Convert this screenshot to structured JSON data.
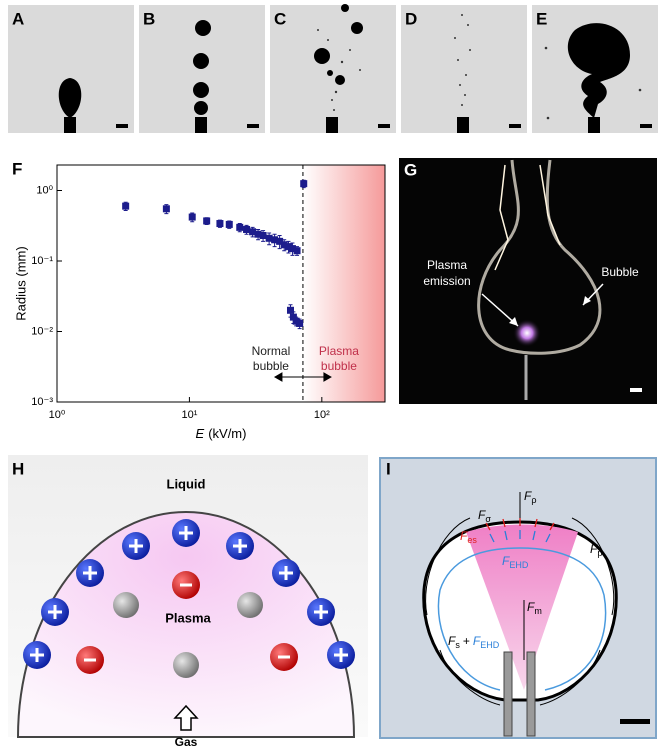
{
  "panel_labels": [
    "A",
    "B",
    "C",
    "D",
    "E",
    "F",
    "G",
    "H",
    "I"
  ],
  "chart_data": {
    "type": "scatter",
    "x_label": {
      "symbol": "E",
      "unit": "(kV/m)"
    },
    "y_label": "Radius (mm)",
    "xscale": "log",
    "yscale": "log",
    "xlim": [
      1,
      300
    ],
    "ylim": [
      0.001,
      2.3
    ],
    "xticks": [
      {
        "value": 1,
        "label": "10⁰"
      },
      {
        "value": 10,
        "label": "10¹"
      },
      {
        "value": 100,
        "label": "10²"
      }
    ],
    "yticks": [
      {
        "value": 0.001,
        "label": "10⁻³"
      },
      {
        "value": 0.01,
        "label": "10⁻²"
      },
      {
        "value": 0.1,
        "label": "10⁻¹"
      },
      {
        "value": 1,
        "label": "10⁰"
      }
    ],
    "dashed_line_x": 72,
    "series": [
      {
        "color": "#1c1c8c",
        "x": [
          3.3,
          6.7,
          10.5,
          13.5,
          17,
          20,
          24,
          27,
          30,
          33,
          36,
          40,
          44,
          48,
          52,
          56,
          60,
          65,
          58,
          61,
          64,
          68,
          73
        ],
        "values": [
          0.6,
          0.55,
          0.42,
          0.37,
          0.34,
          0.33,
          0.3,
          0.28,
          0.26,
          0.24,
          0.23,
          0.21,
          0.2,
          0.19,
          0.17,
          0.16,
          0.15,
          0.14,
          0.02,
          0.016,
          0.014,
          0.013,
          1.25
        ],
        "errors": [
          0.08,
          0.08,
          0.06,
          0.04,
          0.04,
          0.04,
          0.04,
          0.04,
          0.04,
          0.04,
          0.04,
          0.04,
          0.04,
          0.04,
          0.03,
          0.03,
          0.03,
          0.02,
          0.004,
          0.003,
          0.002,
          0.002,
          0.15
        ]
      }
    ],
    "annotations": [
      {
        "lines": [
          "Normal",
          "bubble"
        ],
        "color": "#222222"
      },
      {
        "lines": [
          "Plasma",
          "bubble"
        ],
        "color": "#c0304a"
      }
    ]
  },
  "photo": {
    "labels": [
      "Plasma",
      "emission",
      "Bubble"
    ]
  },
  "schematic": {
    "liquid": "Liquid",
    "plasma": "Plasma",
    "gas": "Gas"
  },
  "forces": {
    "rho": {
      "main": "F",
      "sub": "ρ"
    },
    "sigma": {
      "main": "F",
      "sub": "σ"
    },
    "es": {
      "main": "F",
      "sub": "es"
    },
    "ehd": {
      "main": "F",
      "sub": "EHD"
    },
    "p": {
      "main": "F",
      "sub": "p"
    },
    "m": {
      "main": "F",
      "sub": "m"
    },
    "s": {
      "main": "F",
      "sub": "s",
      "plus": "+",
      "main2": "F",
      "sub2": "EHD"
    }
  }
}
